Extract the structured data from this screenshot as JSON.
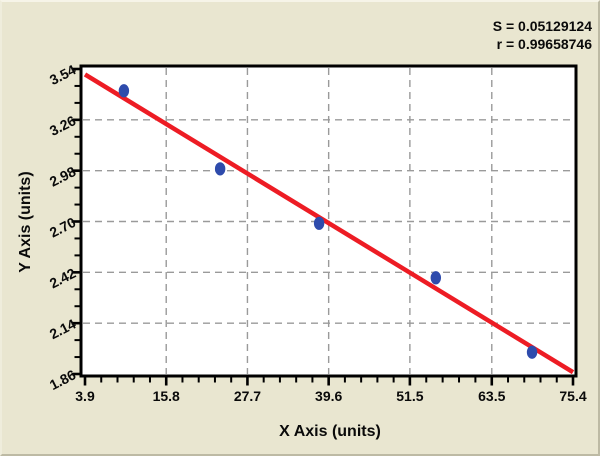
{
  "chart_data": {
    "type": "scatter",
    "title": "",
    "xlabel": "X Axis (units)",
    "ylabel": "Y Axis (units)",
    "annotations": [
      "S = 0.05129124",
      "r = 0.99658746"
    ],
    "xlim": [
      3.9,
      75.4
    ],
    "ylim": [
      1.86,
      3.54
    ],
    "x_ticks": [
      3.9,
      15.8,
      27.7,
      39.6,
      51.5,
      63.5,
      75.4
    ],
    "x_tick_labels": [
      "3.9",
      "15.8",
      "27.7",
      "39.6",
      "51.5",
      "63.5",
      "75.4"
    ],
    "y_ticks": [
      1.86,
      2.14,
      2.42,
      2.7,
      2.98,
      3.26,
      3.54
    ],
    "y_tick_labels": [
      "1.86",
      "2.14",
      "2.42",
      "2.70",
      "2.98",
      "3.26",
      "3.54"
    ],
    "minor_ticks_per_x_interval": 4,
    "minor_ticks_per_y_interval": 2,
    "grid": "dashed",
    "legend": "none",
    "points": [
      {
        "x": 9.6,
        "y": 3.42
      },
      {
        "x": 23.7,
        "y": 2.99
      },
      {
        "x": 38.2,
        "y": 2.69
      },
      {
        "x": 55.3,
        "y": 2.39
      },
      {
        "x": 69.4,
        "y": 1.98
      }
    ],
    "fit_line": {
      "x1": 3.9,
      "y1": 3.51,
      "x2": 75.4,
      "y2": 1.87
    },
    "colors": {
      "background": "#e9e6d0",
      "plot_background": "#ffffff",
      "axis": "#000000",
      "grid": "#9a9a9a",
      "point": "#2e4bac",
      "line": "#ed1c24",
      "text": "#0a0a0a"
    }
  }
}
